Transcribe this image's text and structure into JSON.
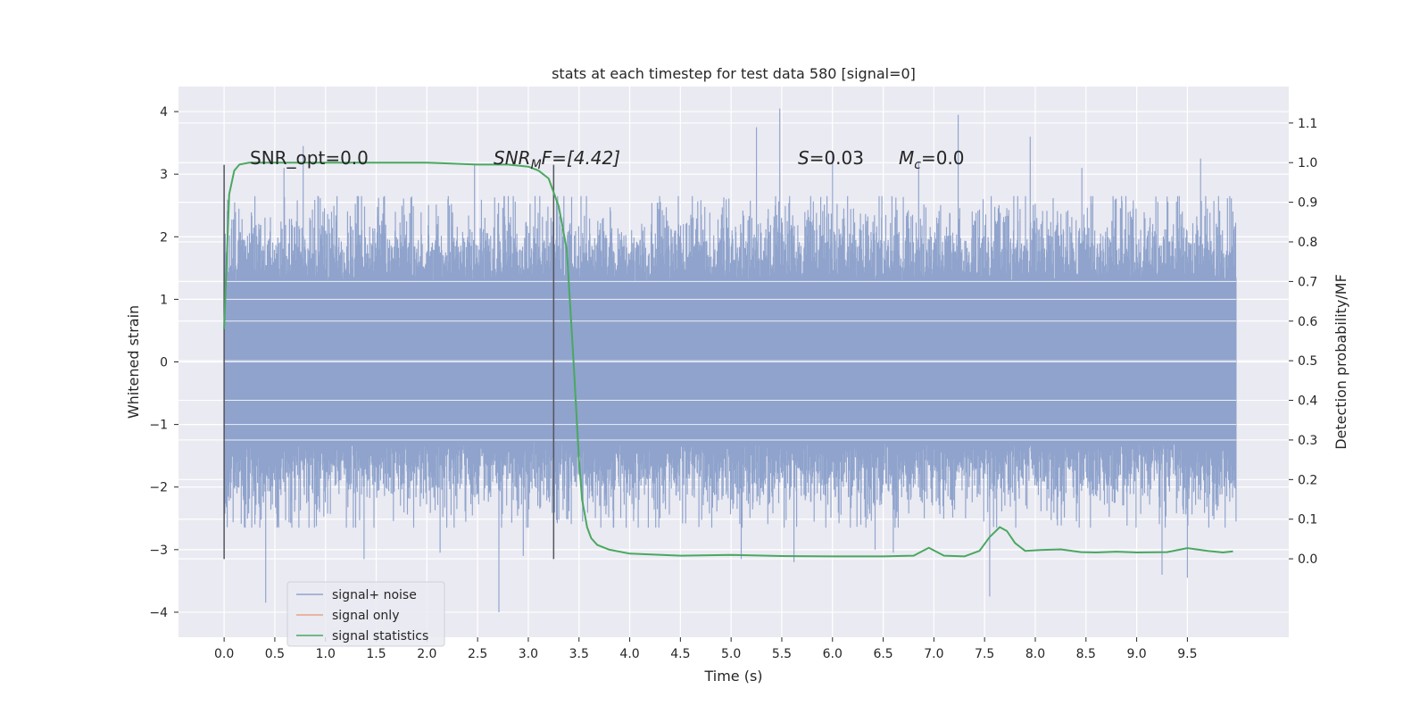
{
  "chart_data": {
    "type": "line",
    "title": "stats at each timestep for test data 580 [signal=0]",
    "xlabel": "Time (s)",
    "ylabel": "Whitened strain",
    "y2label": "Detection probability/MF",
    "xlim": [
      -0.45,
      10.5
    ],
    "ylim": [
      -4.4,
      4.4
    ],
    "y2lim": [
      -0.198,
      1.192
    ],
    "xticks": [
      "0.0",
      "0.5",
      "1.0",
      "1.5",
      "2.0",
      "2.5",
      "3.0",
      "3.5",
      "4.0",
      "4.5",
      "5.0",
      "5.5",
      "6.0",
      "6.5",
      "7.0",
      "7.5",
      "8.0",
      "8.5",
      "9.0",
      "9.5"
    ],
    "yticks": [
      "4",
      "3",
      "2",
      "1",
      "0",
      "−1",
      "−2",
      "−3",
      "−4"
    ],
    "y2ticks": [
      "1.1",
      "1.0",
      "0.9",
      "0.8",
      "0.7",
      "0.6",
      "0.5",
      "0.4",
      "0.3",
      "0.2",
      "0.1",
      "0.0"
    ],
    "grid": true,
    "legend_position": "lower-left",
    "annotations": {
      "snr_opt": "SNR_opt=0.0",
      "snr_mf_main": "SNR",
      "snr_mf_sub": "M",
      "snr_mf_rest": "F=[4.42]",
      "s_sym": "S",
      "s_val": "=0.03",
      "mc_sym": "M",
      "mc_sub": "c",
      "mc_val": "=0.0"
    },
    "vlines": [
      0.0,
      3.25
    ],
    "series": [
      {
        "name": "signal+ noise",
        "color": "#8fa3cc",
        "x_range": [
          0.0,
          9.98
        ],
        "core_band": [
          -1.28,
          1.28
        ],
        "typical_extremes": [
          -2.6,
          2.6
        ],
        "outliers": [
          {
            "x": 0.41,
            "y": -3.85
          },
          {
            "x": 0.59,
            "y": 3.1
          },
          {
            "x": 0.78,
            "y": 3.45
          },
          {
            "x": 1.38,
            "y": -3.15
          },
          {
            "x": 2.13,
            "y": -3.05
          },
          {
            "x": 2.47,
            "y": 3.15
          },
          {
            "x": 2.71,
            "y": -4.0
          },
          {
            "x": 2.95,
            "y": -3.1
          },
          {
            "x": 5.1,
            "y": -3.15
          },
          {
            "x": 5.25,
            "y": 3.75
          },
          {
            "x": 5.48,
            "y": 4.05
          },
          {
            "x": 5.62,
            "y": -3.2
          },
          {
            "x": 6.0,
            "y": 3.35
          },
          {
            "x": 6.42,
            "y": -3.0
          },
          {
            "x": 6.6,
            "y": -3.05
          },
          {
            "x": 6.85,
            "y": 3.2
          },
          {
            "x": 7.24,
            "y": 3.95
          },
          {
            "x": 7.55,
            "y": -3.75
          },
          {
            "x": 7.95,
            "y": 3.6
          },
          {
            "x": 8.46,
            "y": 3.1
          },
          {
            "x": 9.25,
            "y": -3.4
          },
          {
            "x": 9.5,
            "y": -3.45
          },
          {
            "x": 9.63,
            "y": 3.25
          }
        ]
      },
      {
        "name": "signal only",
        "color": "#e8a488",
        "values": []
      },
      {
        "name": "signal statistics",
        "color": "#4aa860",
        "x": [
          0.0,
          0.05,
          0.1,
          0.15,
          0.25,
          0.5,
          1.0,
          2.0,
          2.5,
          2.8,
          3.0,
          3.1,
          3.2,
          3.3,
          3.38,
          3.45,
          3.5,
          3.53,
          3.58,
          3.62,
          3.68,
          3.8,
          4.0,
          4.5,
          5.0,
          5.5,
          6.0,
          6.5,
          6.8,
          6.95,
          7.1,
          7.3,
          7.45,
          7.55,
          7.65,
          7.72,
          7.8,
          7.9,
          8.05,
          8.25,
          8.45,
          8.6,
          8.8,
          9.0,
          9.3,
          9.5,
          9.7,
          9.85,
          9.95
        ],
        "y": [
          0.58,
          0.92,
          0.98,
          0.995,
          1.0,
          1.0,
          1.0,
          1.0,
          0.995,
          0.995,
          0.99,
          0.98,
          0.96,
          0.89,
          0.78,
          0.48,
          0.25,
          0.15,
          0.08,
          0.052,
          0.035,
          0.023,
          0.013,
          0.008,
          0.01,
          0.007,
          0.006,
          0.006,
          0.008,
          0.028,
          0.008,
          0.006,
          0.02,
          0.055,
          0.08,
          0.07,
          0.04,
          0.02,
          0.022,
          0.024,
          0.017,
          0.016,
          0.018,
          0.016,
          0.017,
          0.027,
          0.02,
          0.016,
          0.019
        ]
      }
    ]
  }
}
